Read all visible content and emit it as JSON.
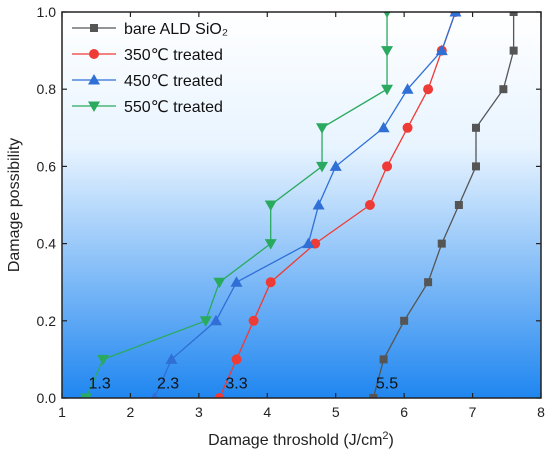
{
  "chart_data": {
    "type": "line",
    "xlabel": "Damage throshold (J/cm²)",
    "ylabel": "Damage possibility",
    "xlim": [
      1,
      8
    ],
    "ylim": [
      0,
      1.0
    ],
    "xticks": [
      "1",
      "2",
      "3",
      "4",
      "5",
      "6",
      "7",
      "8"
    ],
    "yticks": [
      "0.0",
      "0.2",
      "0.4",
      "0.6",
      "0.8",
      "1.0"
    ],
    "background": {
      "type": "vertical-gradient",
      "top_color": "#ffffff",
      "bottom_color": "#1f86f0"
    },
    "legend_position": "top-left",
    "series": [
      {
        "name": "bare ALD SiO₂",
        "color": "#555555",
        "marker": "square",
        "points": [
          [
            5.55,
            0.0
          ],
          [
            5.7,
            0.1
          ],
          [
            6.0,
            0.2
          ],
          [
            6.35,
            0.3
          ],
          [
            6.55,
            0.4
          ],
          [
            6.8,
            0.5
          ],
          [
            7.05,
            0.6
          ],
          [
            7.05,
            0.7
          ],
          [
            7.45,
            0.8
          ],
          [
            7.6,
            0.9
          ],
          [
            7.6,
            1.0
          ]
        ]
      },
      {
        "name": "350℃ treated",
        "color": "#ef3b36",
        "marker": "circle",
        "points": [
          [
            3.3,
            0.0
          ],
          [
            3.55,
            0.1
          ],
          [
            3.8,
            0.2
          ],
          [
            4.05,
            0.3
          ],
          [
            4.7,
            0.4
          ],
          [
            5.5,
            0.5
          ],
          [
            5.75,
            0.6
          ],
          [
            6.05,
            0.7
          ],
          [
            6.35,
            0.8
          ],
          [
            6.55,
            0.9
          ],
          [
            6.75,
            1.0
          ]
        ]
      },
      {
        "name": "450℃ treated",
        "color": "#2f6fd6",
        "marker": "triangle-up",
        "points": [
          [
            2.35,
            0.0
          ],
          [
            2.6,
            0.1
          ],
          [
            3.25,
            0.2
          ],
          [
            3.55,
            0.3
          ],
          [
            4.6,
            0.4
          ],
          [
            4.75,
            0.5
          ],
          [
            5.0,
            0.6
          ],
          [
            5.7,
            0.7
          ],
          [
            6.05,
            0.8
          ],
          [
            6.55,
            0.9
          ],
          [
            6.75,
            1.0
          ]
        ]
      },
      {
        "name": "550℃ treated",
        "color": "#2aaa5e",
        "marker": "triangle-down",
        "points": [
          [
            1.35,
            0.0
          ],
          [
            1.6,
            0.1
          ],
          [
            3.1,
            0.2
          ],
          [
            3.3,
            0.3
          ],
          [
            4.05,
            0.4
          ],
          [
            4.05,
            0.5
          ],
          [
            4.8,
            0.6
          ],
          [
            4.8,
            0.7
          ],
          [
            5.75,
            0.8
          ],
          [
            5.75,
            0.9
          ],
          [
            5.75,
            1.0
          ]
        ]
      }
    ],
    "annotations": [
      {
        "text": "1.3",
        "x": 1.55,
        "y": 0.04
      },
      {
        "text": "2.3",
        "x": 2.55,
        "y": 0.04
      },
      {
        "text": "3.3",
        "x": 3.55,
        "y": 0.04
      },
      {
        "text": "5.5",
        "x": 5.75,
        "y": 0.04
      }
    ]
  }
}
